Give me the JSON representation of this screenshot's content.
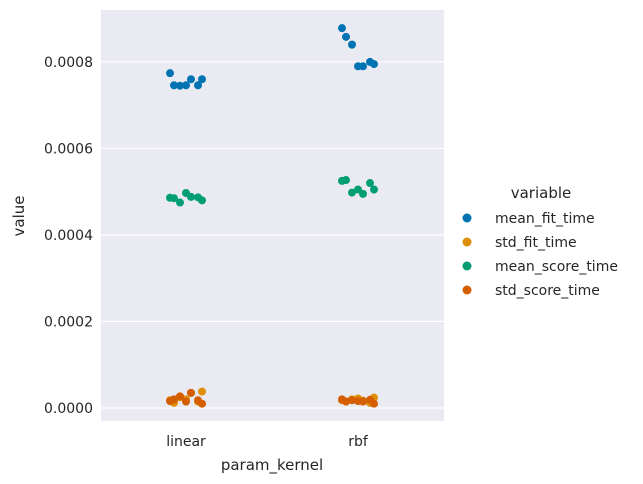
{
  "chart_data": {
    "type": "scatter",
    "subtype": "strip",
    "xlabel": "param_kernel",
    "ylabel": "value",
    "categories": [
      "linear",
      "rbf"
    ],
    "ylim": [
      -3e-05,
      0.00092
    ],
    "yticks": [
      "0.0000",
      "0.0002",
      "0.0004",
      "0.0006",
      "0.0008"
    ],
    "grid": true,
    "legend": {
      "title": "variable",
      "placement": "right",
      "entries": [
        "mean_fit_time",
        "std_fit_time",
        "mean_score_time",
        "std_score_time"
      ]
    },
    "series": [
      {
        "name": "mean_fit_time",
        "color": "#0173b2",
        "points": [
          {
            "category": "linear",
            "values": [
              0.000774,
              0.000746,
              0.000745,
              0.000746,
              0.00076,
              0.000746,
              0.00076
            ]
          },
          {
            "category": "rbf",
            "values": [
              0.000878,
              0.000858,
              0.00084,
              0.00079,
              0.00079,
              0.0008,
              0.000795
            ]
          }
        ]
      },
      {
        "name": "std_fit_time",
        "color": "#de8f05",
        "points": [
          {
            "category": "linear",
            "values": [
              1.8e-05,
              1.2e-05,
              2.5e-05,
              2e-05,
              3.5e-05,
              1.5e-05,
              3.8e-05
            ]
          },
          {
            "category": "rbf",
            "values": [
              1.8e-05,
              1.5e-05,
              2e-05,
              2.2e-05,
              1.7e-05,
              1.2e-05,
              2.4e-05
            ]
          }
        ]
      },
      {
        "name": "mean_score_time",
        "color": "#029e73",
        "points": [
          {
            "category": "linear",
            "values": [
              0.000486,
              0.000485,
              0.000475,
              0.000497,
              0.000488,
              0.000487,
              0.00048
            ]
          },
          {
            "category": "rbf",
            "values": [
              0.000525,
              0.000527,
              0.000498,
              0.000505,
              0.000495,
              0.00052,
              0.000505
            ]
          }
        ]
      },
      {
        "name": "std_score_time",
        "color": "#d55e00",
        "points": [
          {
            "category": "linear",
            "values": [
              1.6e-05,
              2e-05,
              2.7e-05,
              1.5e-05,
              3.5e-05,
              1.8e-05,
              1e-05
            ]
          },
          {
            "category": "rbf",
            "values": [
              2e-05,
              1.5e-05,
              1.8e-05,
              1.6e-05,
              1.5e-05,
              1.9e-05,
              1e-05
            ]
          }
        ]
      }
    ]
  }
}
